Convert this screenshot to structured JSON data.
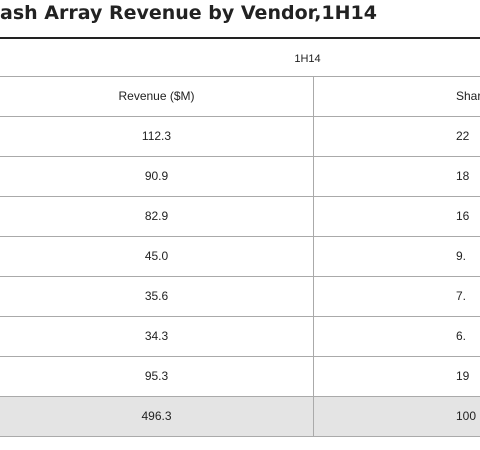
{
  "header": {
    "title": "ash Array Revenue by Vendor,1H14"
  },
  "table": {
    "group_header": "1H14",
    "columns": [
      "Revenue ($M)",
      "Shar"
    ],
    "rows": [
      [
        "112.3",
        "22"
      ],
      [
        "90.9",
        "18"
      ],
      [
        "82.9",
        "16"
      ],
      [
        "45.0",
        "9."
      ],
      [
        "35.6",
        "7."
      ],
      [
        "34.3",
        "6."
      ],
      [
        "95.3",
        "19"
      ],
      [
        "496.3",
        "100"
      ]
    ]
  }
}
